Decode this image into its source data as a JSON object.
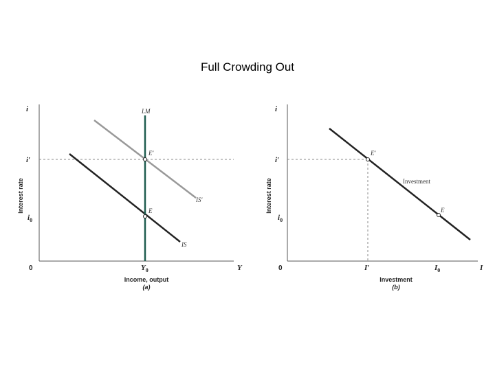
{
  "title": "Full Crowding Out",
  "panel_a": {
    "y_axis_symbol": "i",
    "x_axis_symbol": "Y",
    "origin": "0",
    "y_axis_label": "Interest rate",
    "x_axis_label": "Income, output",
    "panel_label": "(a)",
    "y_ticks": {
      "i_prime": "i′",
      "i0": "i",
      "i0_sub": "0"
    },
    "x_ticks": {
      "Y0": "Y",
      "Y0_sub": "0"
    },
    "curves": {
      "LM": "LM",
      "IS": "IS",
      "IS_prime": "IS′"
    },
    "points": {
      "E": "E",
      "E_prime": "E′"
    }
  },
  "panel_b": {
    "y_axis_symbol": "i",
    "x_axis_symbol": "I",
    "origin": "0",
    "y_axis_label": "Interest rate",
    "x_axis_label": "Investment",
    "panel_label": "(b)",
    "y_ticks": {
      "i_prime": "i′",
      "i0": "i",
      "i0_sub": "0"
    },
    "x_ticks": {
      "I_prime": "I′",
      "I0": "I",
      "I0_sub": "0"
    },
    "curves": {
      "investment": "Investment"
    },
    "points": {
      "E": "E",
      "E_prime": "E′"
    }
  },
  "colors": {
    "LM": "#1f5c4f",
    "IS": "#222222",
    "IS_prime": "#999999",
    "investment": "#222222",
    "dashed": "#888888"
  }
}
